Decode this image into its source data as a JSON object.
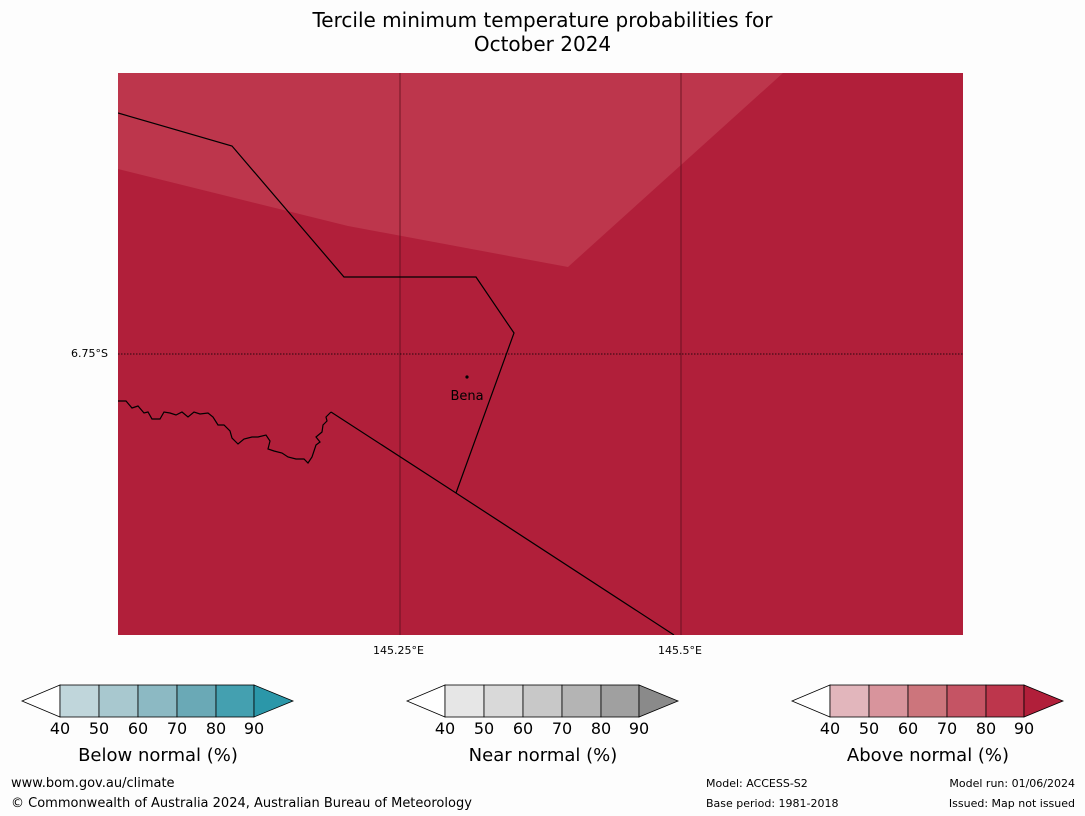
{
  "title": {
    "line1": "Tercile minimum temperature probabilities for",
    "line2": "October 2024"
  },
  "map": {
    "lat_label": "6.75°S",
    "lon_labels": [
      "145.25°E",
      "145.5°E"
    ],
    "place": "Bena",
    "colors": {
      "high_prob": "#b11f3a",
      "mid_high_prob": "#bd364c"
    }
  },
  "colorbars": [
    {
      "id": "below",
      "ticks": [
        "40",
        "50",
        "60",
        "70",
        "80",
        "90"
      ],
      "label": "Below normal (%)",
      "colors": [
        "#c0d6db",
        "#a8c8cf",
        "#8cb9c3",
        "#6aa9b6",
        "#44a0b0",
        "#2b97a9"
      ]
    },
    {
      "id": "near",
      "ticks": [
        "40",
        "50",
        "60",
        "70",
        "80",
        "90"
      ],
      "label": "Near normal (%)",
      "colors": [
        "#e6e6e6",
        "#d9d9d9",
        "#c8c8c8",
        "#b4b4b4",
        "#a0a0a0",
        "#8a8a8a"
      ]
    },
    {
      "id": "above",
      "ticks": [
        "40",
        "50",
        "60",
        "70",
        "80",
        "90"
      ],
      "label": "Above normal (%)",
      "colors": [
        "#e2b6bc",
        "#d8949c",
        "#cc757c",
        "#c55464",
        "#bd364c",
        "#b11f3a"
      ]
    }
  ],
  "footer": {
    "website": "www.bom.gov.au/climate",
    "copyright": "© Commonwealth of Australia 2024, Australian Bureau of Meteorology",
    "model": "Model: ACCESS-S2",
    "base_period": "Base period: 1981-2018",
    "model_run": "Model run: 01/06/2024",
    "issued": "Issued: Map not issued"
  }
}
